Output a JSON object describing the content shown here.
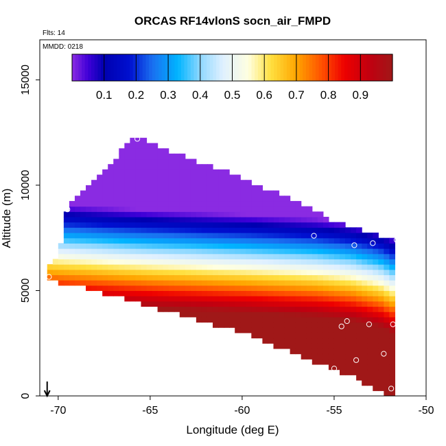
{
  "chart_data": {
    "type": "heatmap",
    "title": "ORCAS RF14vlonS socn_air_FMPD",
    "flights_note": "Flts: 14",
    "date_note": "MMDD: 0218",
    "xlabel": "Longitude (deg E)",
    "ylabel": "Altitude (m)",
    "xlim": [
      -71,
      -50
    ],
    "ylim": [
      0,
      16900
    ],
    "x_ticks": [
      -70,
      -65,
      -60,
      -55,
      -50
    ],
    "x_tick_labels": [
      "-70",
      "-65",
      "-60",
      "-55",
      "-50"
    ],
    "y_ticks": [
      0,
      5000,
      10000,
      15000
    ],
    "y_tick_labels": [
      "0",
      "5000",
      "10000",
      "15000"
    ],
    "colorbar": {
      "range": [
        0,
        1
      ],
      "ticks": [
        0.1,
        0.2,
        0.3,
        0.4,
        0.5,
        0.6,
        0.7,
        0.8,
        0.9
      ],
      "tick_labels": [
        "0.1",
        "0.2",
        "0.3",
        "0.4",
        "0.5",
        "0.6",
        "0.7",
        "0.8",
        "0.9"
      ],
      "color_stops": [
        {
          "v": 0.0,
          "c": "#8a2be2"
        },
        {
          "v": 0.05,
          "c": "#3f00d8"
        },
        {
          "v": 0.1,
          "c": "#0000b0"
        },
        {
          "v": 0.18,
          "c": "#0010d0"
        },
        {
          "v": 0.25,
          "c": "#1a6ff0"
        },
        {
          "v": 0.33,
          "c": "#00b4ff"
        },
        {
          "v": 0.4,
          "c": "#8fd8ff"
        },
        {
          "v": 0.47,
          "c": "#dff0ff"
        },
        {
          "v": 0.55,
          "c": "#ffffe0"
        },
        {
          "v": 0.62,
          "c": "#ffe040"
        },
        {
          "v": 0.7,
          "c": "#ffa500"
        },
        {
          "v": 0.78,
          "c": "#ff5000"
        },
        {
          "v": 0.85,
          "c": "#ee0000"
        },
        {
          "v": 0.93,
          "c": "#c00010"
        },
        {
          "v": 1.0,
          "c": "#a01818"
        }
      ]
    },
    "field": {
      "lon_min": -70.6,
      "lon_max": -51.8,
      "lon_step": 0.3,
      "alt_step": 250,
      "top_boundary": [
        [
          -70.6,
          6200
        ],
        [
          -70.0,
          6500
        ],
        [
          -69.5,
          8900
        ],
        [
          -67.5,
          10800
        ],
        [
          -65.8,
          12300
        ],
        [
          -64.5,
          11800
        ],
        [
          -61.0,
          10700
        ],
        [
          -57.0,
          9200
        ],
        [
          -55.0,
          8300
        ],
        [
          -52.5,
          7600
        ],
        [
          -51.6,
          7400
        ]
      ],
      "bottom_boundary": [
        [
          -70.6,
          5500
        ],
        [
          -68.0,
          5000
        ],
        [
          -64.0,
          4000
        ],
        [
          -60.0,
          3000
        ],
        [
          -56.0,
          1600
        ],
        [
          -54.0,
          900
        ],
        [
          -52.0,
          0
        ],
        [
          -51.8,
          0
        ]
      ],
      "transition_alt_center": [
        [
          -70.6,
          6800
        ],
        [
          -65.0,
          6500
        ],
        [
          -60.0,
          6300
        ],
        [
          -56.0,
          6100
        ],
        [
          -54.0,
          5900
        ],
        [
          -52.5,
          5600
        ],
        [
          -51.8,
          5300
        ]
      ],
      "transition_scale_m": 4200
    },
    "sample_points": [
      {
        "lon": -65.7,
        "alt": 12200
      },
      {
        "lon": -69.5,
        "alt": 8850
      },
      {
        "lon": -70.5,
        "alt": 5650
      },
      {
        "lon": -56.1,
        "alt": 7600
      },
      {
        "lon": -53.9,
        "alt": 7150
      },
      {
        "lon": -52.9,
        "alt": 7250
      },
      {
        "lon": -51.6,
        "alt": 7400
      },
      {
        "lon": -54.3,
        "alt": 3550
      },
      {
        "lon": -54.6,
        "alt": 3300
      },
      {
        "lon": -53.1,
        "alt": 3400
      },
      {
        "lon": -51.8,
        "alt": 3400
      },
      {
        "lon": -52.3,
        "alt": 2000
      },
      {
        "lon": -53.8,
        "alt": 1700
      },
      {
        "lon": -55.0,
        "alt": 1300
      },
      {
        "lon": -51.9,
        "alt": 350
      },
      {
        "lon": -54.8,
        "alt": 150
      },
      {
        "lon": -53.3,
        "alt": 150
      }
    ],
    "arrow_marker": {
      "lon": -70.6,
      "direction": "down"
    }
  }
}
